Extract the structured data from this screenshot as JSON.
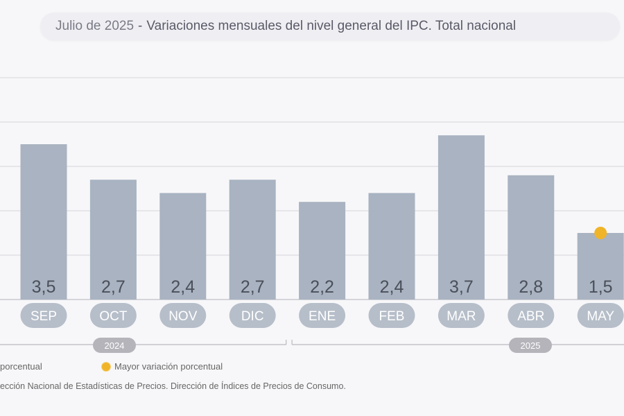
{
  "header": {
    "date": "Julio de 2025",
    "separator": "-",
    "title": "Variaciones mensuales del nivel general del IPC. Total nacional"
  },
  "chart_data": {
    "type": "bar",
    "title": "Variaciones mensuales del nivel general del IPC. Total nacional",
    "categories": [
      "SEP",
      "OCT",
      "NOV",
      "DIC",
      "ENE",
      "FEB",
      "MAR",
      "ABR",
      "MAY"
    ],
    "values": [
      3.5,
      2.7,
      2.4,
      2.7,
      2.2,
      2.4,
      3.7,
      2.8,
      1.5
    ],
    "value_labels": [
      "3,5",
      "2,7",
      "2,4",
      "2,7",
      "2,2",
      "2,4",
      "3,7",
      "2,8",
      "1,5"
    ],
    "years": [
      {
        "label": "2024",
        "from": "SEP",
        "to": "DIC"
      },
      {
        "label": "2025",
        "from": "ENE",
        "to": "MAY"
      }
    ],
    "highlight": {
      "category": "MAY",
      "marker": "dot"
    },
    "ylim": [
      0,
      5
    ],
    "grid": true,
    "bar_color": "#a9b3c1",
    "highlight_color": "#f0b429",
    "legend": {
      "placement": "bottom",
      "items": [
        "porcentual",
        "Mayor variación porcentual"
      ]
    }
  },
  "source": "ección Nacional de Estadísticas de Precios. Dirección de Índices de Precios de Consumo."
}
